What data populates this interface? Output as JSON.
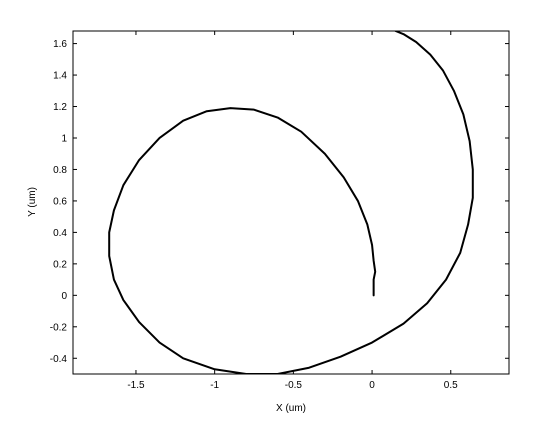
{
  "chart_data": {
    "type": "line",
    "title": "",
    "xlabel": "X (um)",
    "ylabel": "Y (um)",
    "xlim": [
      -1.9,
      0.87
    ],
    "ylim": [
      -0.5,
      1.68
    ],
    "xticks": [
      -1.5,
      -1,
      -0.5,
      0,
      0.5
    ],
    "xtick_labels": [
      "-1.5",
      "-1",
      "-0.5",
      "0",
      "0.5"
    ],
    "yticks": [
      -0.4,
      -0.2,
      0,
      0.2,
      0.4,
      0.6,
      0.8,
      1,
      1.2,
      1.4,
      1.6
    ],
    "ytick_labels": [
      "-0.4",
      "-0.2",
      "0",
      "0.2",
      "0.4",
      "0.6",
      "0.8",
      "1",
      "1.2",
      "1.4",
      "1.6"
    ],
    "grid": false,
    "legend": false,
    "line_color": "#000000",
    "series": [
      {
        "points": [
          [
            0.01,
            0.0
          ],
          [
            0.01,
            0.05
          ],
          [
            0.01,
            0.1
          ],
          [
            0.02,
            0.15
          ],
          [
            0.01,
            0.22
          ],
          [
            0.0,
            0.32
          ],
          [
            -0.03,
            0.45
          ],
          [
            -0.09,
            0.6
          ],
          [
            -0.18,
            0.75
          ],
          [
            -0.3,
            0.9
          ],
          [
            -0.45,
            1.04
          ],
          [
            -0.6,
            1.13
          ],
          [
            -0.75,
            1.18
          ],
          [
            -0.9,
            1.19
          ],
          [
            -1.05,
            1.17
          ],
          [
            -1.2,
            1.11
          ],
          [
            -1.35,
            1.0
          ],
          [
            -1.48,
            0.86
          ],
          [
            -1.58,
            0.7
          ],
          [
            -1.64,
            0.54
          ],
          [
            -1.67,
            0.4
          ],
          [
            -1.67,
            0.25
          ],
          [
            -1.64,
            0.1
          ],
          [
            -1.58,
            -0.03
          ],
          [
            -1.48,
            -0.17
          ],
          [
            -1.35,
            -0.3
          ],
          [
            -1.2,
            -0.4
          ],
          [
            -1.0,
            -0.47
          ],
          [
            -0.8,
            -0.5
          ],
          [
            -0.6,
            -0.5
          ],
          [
            -0.4,
            -0.46
          ],
          [
            -0.2,
            -0.39
          ],
          [
            0.0,
            -0.3
          ],
          [
            0.2,
            -0.18
          ],
          [
            0.35,
            -0.05
          ],
          [
            0.47,
            0.1
          ],
          [
            0.56,
            0.27
          ],
          [
            0.61,
            0.45
          ],
          [
            0.64,
            0.62
          ],
          [
            0.64,
            0.8
          ],
          [
            0.62,
            0.98
          ],
          [
            0.58,
            1.15
          ],
          [
            0.52,
            1.3
          ],
          [
            0.45,
            1.43
          ],
          [
            0.37,
            1.53
          ],
          [
            0.28,
            1.61
          ],
          [
            0.2,
            1.66
          ],
          [
            0.15,
            1.68
          ]
        ]
      }
    ]
  }
}
